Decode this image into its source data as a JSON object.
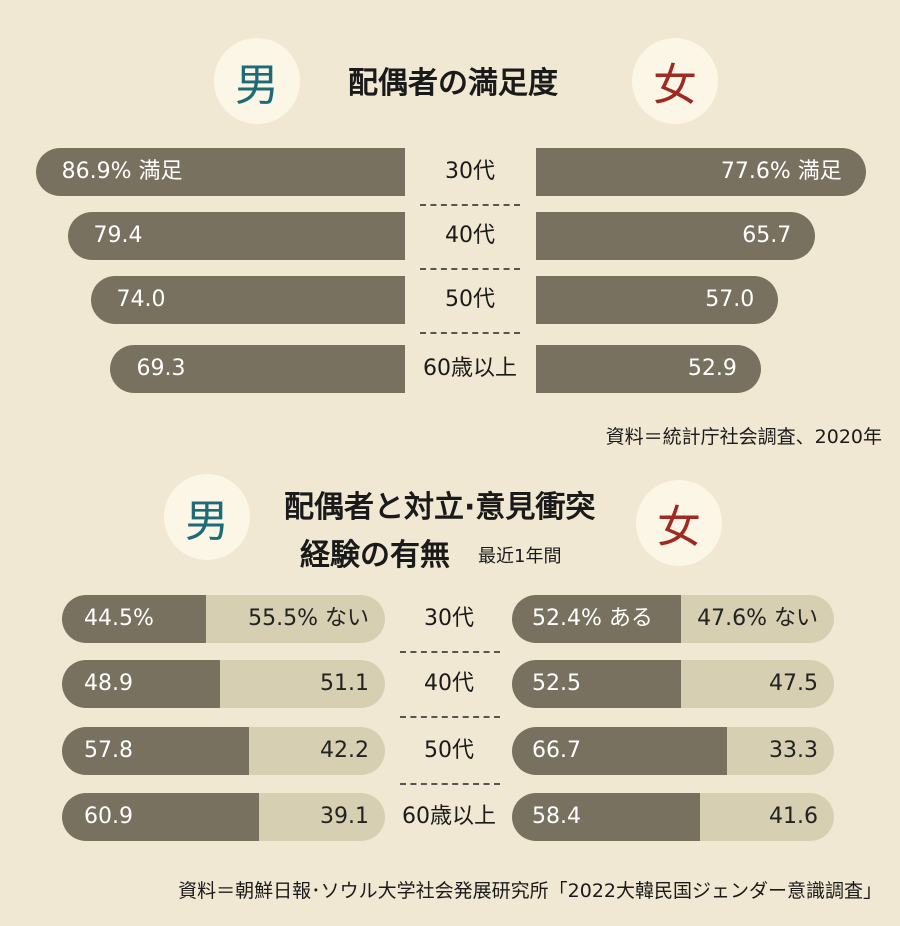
{
  "colors": {
    "background": "#f0e8d2",
    "bar_dark": "#79715f",
    "bar_light": "#d6cfb2",
    "male": "#1e6b78",
    "female": "#9e2a22"
  },
  "chart_data": [
    {
      "type": "bar",
      "title": "配偶者の満足度",
      "categories": [
        "30代",
        "40代",
        "50代",
        "60歳以上"
      ],
      "male_badge": "男",
      "female_badge": "女",
      "series": [
        {
          "name": "男",
          "values": [
            86.9,
            79.4,
            74.0,
            69.3
          ]
        },
        {
          "name": "女",
          "values": [
            77.6,
            65.7,
            57.0,
            52.9
          ]
        }
      ],
      "labels": {
        "male": [
          "86.9% 満足",
          "79.4",
          "74.0",
          "69.3"
        ],
        "female": [
          "77.6% 満足",
          "65.7",
          "57.0",
          "52.9"
        ]
      },
      "source": "資料＝統計庁社会調査、2020年"
    },
    {
      "type": "bar",
      "title_line1": "配偶者と対立·意見衝突",
      "title_line2": "経験の有無",
      "subtitle": "最近1年間",
      "male_badge": "男",
      "female_badge": "女",
      "categories": [
        "30代",
        "40代",
        "50代",
        "60歳以上"
      ],
      "series": [
        {
          "name": "男 ある",
          "values": [
            44.5,
            48.9,
            57.8,
            60.9
          ]
        },
        {
          "name": "男 ない",
          "values": [
            55.5,
            51.1,
            42.2,
            39.1
          ]
        },
        {
          "name": "女 ある",
          "values": [
            52.4,
            52.5,
            66.7,
            58.4
          ]
        },
        {
          "name": "女 ない",
          "values": [
            47.6,
            47.5,
            33.3,
            41.6
          ]
        }
      ],
      "labels": {
        "male_yes": [
          "44.5%",
          "48.9",
          "57.8",
          "60.9"
        ],
        "male_no": [
          "55.5%  ない",
          "51.1",
          "42.2",
          "39.1"
        ],
        "female_yes": [
          "52.4%  ある",
          "52.5",
          "66.7",
          "58.4"
        ],
        "female_no": [
          "47.6%  ない",
          "47.5",
          "33.3",
          "41.6"
        ]
      },
      "source": "資料＝朝鮮日報･ソウル大学社会発展研究所「2022大韓民国ジェンダー意識調査」"
    }
  ]
}
